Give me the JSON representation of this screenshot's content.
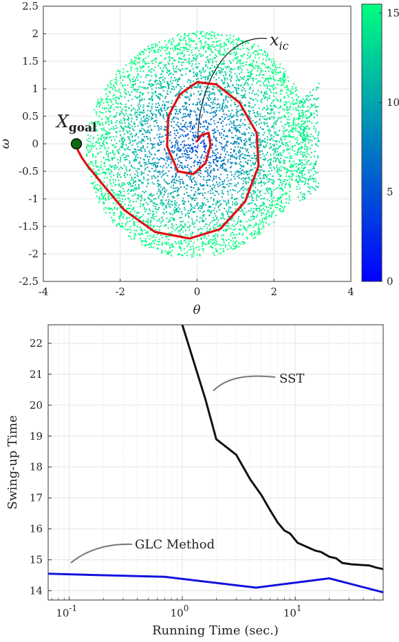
{
  "chart_data": [
    {
      "type": "scatter",
      "xlabel": "θ",
      "ylabel": "ω",
      "xlim": [
        -4,
        4
      ],
      "ylim": [
        -2.5,
        2.5
      ],
      "x_ticks": [
        "-4",
        "-2",
        "0",
        "2",
        "4"
      ],
      "y_ticks": [
        "2.5",
        "2",
        "1.5",
        "1",
        "0.5",
        "0",
        "-0.5",
        "-1",
        "-1.5",
        "-2",
        "-2.5"
      ],
      "grid": true,
      "colormap": {
        "min": 0,
        "max": 15.5,
        "low_color": "#0000ff",
        "high_color": "#00ff80",
        "ticks": [
          "15",
          "10",
          "5",
          "0"
        ]
      },
      "scatter_region": {
        "center": [
          0,
          0
        ],
        "description_values": {
          "theta_range": [
            -3.1,
            3.1
          ],
          "omega_range": [
            -2.1,
            2.2
          ]
        }
      },
      "trajectory": {
        "color": "#dd1111",
        "points": [
          [
            0,
            0.05
          ],
          [
            0.12,
            0.16
          ],
          [
            0.3,
            0.2
          ],
          [
            0.35,
            -0.02
          ],
          [
            0.22,
            -0.35
          ],
          [
            -0.1,
            -0.55
          ],
          [
            -0.5,
            -0.5
          ],
          [
            -0.78,
            -0.05
          ],
          [
            -0.75,
            0.5
          ],
          [
            -0.45,
            0.9
          ],
          [
            0.0,
            1.12
          ],
          [
            0.5,
            1.08
          ],
          [
            1.1,
            0.75
          ],
          [
            1.55,
            0.2
          ],
          [
            1.6,
            -0.4
          ],
          [
            1.25,
            -1.05
          ],
          [
            0.6,
            -1.55
          ],
          [
            -0.2,
            -1.72
          ],
          [
            -1.1,
            -1.6
          ],
          [
            -1.9,
            -1.2
          ],
          [
            -2.5,
            -0.7
          ],
          [
            -2.85,
            -0.4
          ],
          [
            -3.0,
            -0.25
          ],
          [
            -3.1,
            -0.12
          ],
          [
            -3.14,
            0
          ]
        ]
      },
      "annotations": {
        "x_ic": {
          "label_main": "x",
          "label_sub": "ic",
          "point": [
            0.02,
            0.05
          ]
        },
        "x_goal": {
          "label_main": "X",
          "label_sub": "goal",
          "point": [
            -3.14,
            0
          ],
          "color": "#116611"
        }
      }
    },
    {
      "type": "line",
      "xlabel": "Running Time (sec.)",
      "ylabel": "Swing-up Time",
      "xscale": "log",
      "xlim": [
        0.065,
        60
      ],
      "ylim": [
        13.7,
        22.6
      ],
      "x_ticks": [
        {
          "base": "10",
          "exp": "-1",
          "value": 0.1
        },
        {
          "base": "10",
          "exp": "0",
          "value": 1
        },
        {
          "base": "10",
          "exp": "1",
          "value": 10
        }
      ],
      "y_ticks": [
        "14",
        "15",
        "16",
        "17",
        "18",
        "19",
        "20",
        "21",
        "22"
      ],
      "grid": true,
      "series": [
        {
          "name": "SST",
          "color": "#111111",
          "points": [
            [
              1.0,
              22.6
            ],
            [
              1.6,
              20.2
            ],
            [
              2.0,
              18.9
            ],
            [
              3.0,
              18.4
            ],
            [
              4.0,
              17.6
            ],
            [
              5.0,
              17.1
            ],
            [
              6.0,
              16.6
            ],
            [
              7.0,
              16.2
            ],
            [
              8.0,
              15.95
            ],
            [
              9.0,
              15.85
            ],
            [
              10.5,
              15.55
            ],
            [
              13.0,
              15.4
            ],
            [
              15.0,
              15.3
            ],
            [
              17.0,
              15.25
            ],
            [
              20.0,
              15.1
            ],
            [
              23.0,
              15.05
            ],
            [
              26.0,
              14.9
            ],
            [
              32.0,
              14.85
            ],
            [
              45.0,
              14.82
            ],
            [
              52.0,
              14.75
            ],
            [
              60.0,
              14.7
            ]
          ]
        },
        {
          "name": "GLC Method",
          "color": "#1111dd",
          "points": [
            [
              0.065,
              14.55
            ],
            [
              0.7,
              14.45
            ],
            [
              4.5,
              14.1
            ],
            [
              20.0,
              14.4
            ],
            [
              60.0,
              13.95
            ]
          ]
        }
      ],
      "legend": "inline annotations"
    }
  ]
}
